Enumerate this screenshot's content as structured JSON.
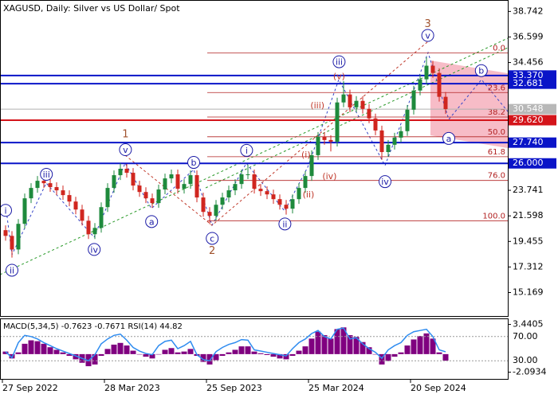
{
  "chart_data": {
    "type": "candlestick",
    "title": "XAGUSD, Daily:  Silver vs US Dollar/ Spot",
    "categories": [
      "27 Sep 2022",
      null,
      null,
      null,
      null,
      null,
      null,
      null,
      null,
      null,
      null,
      null,
      null,
      null,
      null,
      null,
      "28 Mar 2023",
      null,
      null,
      null,
      null,
      null,
      null,
      null,
      null,
      null,
      null,
      null,
      null,
      null,
      null,
      null,
      "25 Sep 2023",
      null,
      null,
      null,
      null,
      null,
      null,
      null,
      null,
      null,
      null,
      null,
      null,
      null,
      null,
      null,
      "25 Mar 2024",
      null,
      null,
      null,
      null,
      null,
      null,
      null,
      null,
      null,
      null,
      null,
      null,
      null,
      null,
      null,
      "20 Sep 2024",
      null,
      null,
      null,
      null,
      null
    ],
    "open": [
      20.4,
      19.92,
      18.78,
      20.93,
      23.07,
      23.94,
      24.54,
      24.34,
      24.01,
      23.74,
      23.34,
      22.8,
      22.13,
      21.19,
      20.06,
      20.59,
      22.33,
      23.94,
      25.01,
      25.55,
      25.21,
      24.14,
      23.6,
      23.07,
      22.67,
      23.81,
      24.74,
      25.08,
      23.87,
      24.27,
      25.01,
      23.14,
      21.93,
      21.6,
      22.53,
      23.14,
      23.74,
      24.27,
      25.08,
      25.08,
      23.87,
      23.67,
      23.4,
      23.0,
      22.53,
      22.2,
      23.0,
      23.94,
      24.94,
      26.69,
      28.23,
      27.96,
      27.82,
      31.11,
      31.78,
      30.7,
      31.24,
      30.57,
      29.77,
      28.76,
      26.95,
      27.56,
      28.16,
      28.7,
      30.5,
      32.11,
      33.05,
      34.19,
      33.58,
      31.58
    ],
    "high": [
      20.8,
      20.32,
      21.33,
      23.47,
      24.34,
      24.94,
      24.94,
      24.74,
      24.41,
      24.14,
      23.74,
      23.2,
      22.53,
      21.59,
      20.99,
      22.73,
      24.34,
      25.41,
      26.0,
      25.95,
      25.61,
      24.54,
      24.0,
      23.47,
      24.21,
      25.14,
      25.48,
      25.48,
      24.67,
      25.41,
      25.41,
      23.54,
      22.33,
      22.93,
      23.54,
      24.14,
      24.67,
      25.48,
      25.9,
      25.48,
      24.27,
      24.07,
      23.8,
      23.4,
      22.93,
      23.4,
      24.34,
      25.34,
      27.09,
      28.63,
      28.63,
      28.36,
      31.51,
      32.9,
      32.18,
      31.64,
      31.64,
      30.97,
      30.17,
      29.16,
      27.96,
      28.56,
      29.1,
      30.9,
      32.51,
      33.45,
      34.9,
      34.59,
      33.98,
      31.98
    ],
    "low": [
      19.52,
      18.1,
      18.38,
      20.53,
      22.67,
      23.54,
      23.94,
      23.61,
      23.34,
      22.94,
      22.4,
      21.73,
      20.79,
      19.66,
      19.66,
      20.19,
      21.93,
      23.54,
      24.61,
      24.81,
      23.74,
      23.2,
      22.67,
      22.27,
      22.27,
      23.41,
      24.34,
      23.47,
      23.47,
      23.87,
      22.74,
      21.53,
      20.9,
      21.2,
      22.13,
      22.74,
      23.34,
      23.87,
      24.68,
      23.47,
      23.27,
      23.0,
      22.6,
      22.13,
      21.7,
      21.8,
      22.6,
      23.54,
      24.54,
      26.29,
      27.56,
      27.0,
      27.42,
      30.71,
      30.3,
      30.3,
      30.17,
      29.37,
      28.36,
      26.3,
      26.55,
      27.16,
      27.76,
      28.3,
      30.1,
      31.71,
      32.65,
      33.18,
      31.18,
      30.15
    ],
    "close": [
      19.92,
      18.78,
      20.93,
      23.07,
      23.94,
      24.54,
      24.34,
      24.01,
      23.74,
      23.34,
      22.8,
      22.13,
      21.19,
      20.06,
      20.59,
      22.33,
      23.94,
      25.01,
      25.55,
      25.21,
      24.14,
      23.6,
      23.07,
      22.67,
      23.81,
      24.74,
      25.08,
      23.87,
      24.27,
      25.01,
      23.14,
      21.93,
      21.6,
      22.53,
      23.14,
      23.74,
      24.27,
      25.08,
      25.08,
      23.87,
      23.67,
      23.4,
      23.0,
      22.53,
      22.2,
      23.0,
      23.94,
      24.94,
      26.69,
      28.23,
      27.96,
      27.82,
      31.11,
      31.78,
      30.7,
      31.24,
      30.57,
      29.77,
      28.76,
      26.95,
      27.56,
      28.16,
      28.7,
      30.5,
      32.11,
      33.05,
      34.19,
      33.58,
      31.58,
      30.55
    ],
    "up_color": "#1e8a3c",
    "down_color": "#d0261f",
    "ylim": [
      13.2,
      39.7
    ],
    "yticks": [
      38.742,
      36.599,
      34.456,
      23.741,
      21.598,
      19.455,
      17.312,
      15.169
    ],
    "last_price": 30.548,
    "levels": [
      {
        "value": 33.37,
        "label": "33.370",
        "color": "#0a14c8"
      },
      {
        "value": 32.681,
        "label": "32.681",
        "color": "#0a14c8"
      },
      {
        "value": 29.62,
        "label": "29.620",
        "color": "#d4141a"
      },
      {
        "value": 27.74,
        "label": "27.740",
        "color": "#0a14c8"
      },
      {
        "value": 26.0,
        "label": "26.000",
        "color": "#0a14c8"
      }
    ],
    "fib_levels": [
      {
        "label": "0.0",
        "value": 35.26
      },
      {
        "label": "23.6",
        "value": 31.94
      },
      {
        "label": "38.2",
        "value": 29.89
      },
      {
        "label": "50.0",
        "value": 28.23
      },
      {
        "label": "61.8",
        "value": 26.56
      },
      {
        "label": "76.0",
        "value": 24.57
      },
      {
        "label": "100.0",
        "value": 21.19
      }
    ],
    "annotations": [
      {
        "text": "i",
        "at": 0,
        "price": 22.06,
        "style": "circle"
      },
      {
        "text": "ii",
        "at": 1,
        "price": 17.04,
        "style": "circle"
      },
      {
        "text": "iii",
        "at": 6.4,
        "price": 25.08,
        "style": "circle"
      },
      {
        "text": "iv",
        "at": 13.9,
        "price": 18.78,
        "style": "circle"
      },
      {
        "text": "v",
        "at": 18.8,
        "price": 27.15,
        "style": "circle"
      },
      {
        "text": "1",
        "at": 18.8,
        "price": 28.49,
        "style": "plain"
      },
      {
        "text": "a",
        "at": 22.9,
        "price": 21.12,
        "style": "circle"
      },
      {
        "text": "b",
        "at": 29.5,
        "price": 26.08,
        "style": "circle"
      },
      {
        "text": "c",
        "at": 32.4,
        "price": 19.71,
        "style": "circle"
      },
      {
        "text": "2",
        "at": 32.4,
        "price": 18.71,
        "style": "plain"
      },
      {
        "text": "i",
        "at": 37.8,
        "price": 27.09,
        "style": "circle"
      },
      {
        "text": "ii",
        "at": 43.8,
        "price": 20.92,
        "style": "circle"
      },
      {
        "text": "(i)",
        "at": 47.1,
        "price": 26.75,
        "style": "paren"
      },
      {
        "text": "(ii)",
        "at": 47.5,
        "price": 23.4,
        "style": "paren"
      },
      {
        "text": "(iii)",
        "at": 48.9,
        "price": 30.9,
        "style": "paren"
      },
      {
        "text": "(iv)",
        "at": 50.8,
        "price": 24.94,
        "style": "paren"
      },
      {
        "text": "(v)",
        "at": 52.3,
        "price": 33.32,
        "style": "paren"
      },
      {
        "text": "iii",
        "at": 52.3,
        "price": 34.52,
        "style": "circle"
      },
      {
        "text": "iv",
        "at": 59.5,
        "price": 24.47,
        "style": "circle"
      },
      {
        "text": "v",
        "at": 66.2,
        "price": 36.73,
        "style": "circle"
      },
      {
        "text": "3",
        "at": 66.2,
        "price": 37.74,
        "style": "plain"
      },
      {
        "text": "b",
        "at": 74.6,
        "price": 33.78,
        "style": "circle"
      },
      {
        "text": "a",
        "at": 69.5,
        "price": 28.09,
        "style": "circle"
      }
    ],
    "indicator_label": "MACD(5,34,5) -0.7623 -0.7671 RSI(14) 44.82",
    "macd": {
      "color": "#800080",
      "ylim": [
        -2.87,
        4.14
      ],
      "yticks": [
        3.4405,
        -2.0934
      ],
      "values": [
        0.3,
        -0.5,
        0.2,
        1.2,
        1.6,
        1.5,
        1.2,
        0.8,
        0.5,
        0.2,
        -0.2,
        -0.6,
        -1.0,
        -1.4,
        -1.2,
        -0.2,
        0.6,
        1.1,
        1.3,
        1.0,
        0.4,
        0.0,
        -0.3,
        -0.5,
        0.0,
        0.5,
        0.7,
        0.2,
        0.3,
        0.6,
        -0.2,
        -0.9,
        -1.2,
        -0.7,
        -0.2,
        0.2,
        0.5,
        0.9,
        0.9,
        0.3,
        0.1,
        -0.1,
        -0.3,
        -0.5,
        -0.6,
        -0.2,
        0.4,
        0.9,
        1.8,
        2.6,
        2.2,
        1.8,
        2.9,
        3.1,
        2.2,
        2.0,
        1.4,
        0.8,
        0.0,
        -1.2,
        -0.8,
        -0.3,
        0.2,
        1.0,
        1.7,
        2.1,
        2.4,
        1.8,
        0.2,
        -0.7623
      ]
    },
    "rsi": {
      "color": "#2f8cf0",
      "y2lim": [
        0,
        100
      ],
      "y2ticks": [
        {
          "value": 70,
          "label": "70.00"
        },
        {
          "value": 30,
          "label": "30.00"
        }
      ],
      "values": [
        45,
        35,
        60,
        72,
        70,
        66,
        60,
        55,
        50,
        46,
        42,
        38,
        34,
        30,
        40,
        58,
        66,
        72,
        74,
        64,
        52,
        46,
        42,
        40,
        55,
        62,
        64,
        50,
        55,
        62,
        40,
        32,
        30,
        45,
        52,
        57,
        60,
        65,
        64,
        48,
        46,
        44,
        42,
        40,
        38,
        50,
        60,
        66,
        75,
        80,
        70,
        66,
        82,
        84,
        66,
        68,
        58,
        50,
        44,
        34,
        48,
        55,
        60,
        72,
        78,
        80,
        82,
        70,
        48,
        44.82
      ]
    }
  }
}
